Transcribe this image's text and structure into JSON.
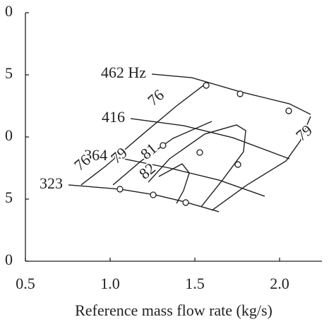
{
  "chart_data": {
    "type": "line",
    "xlabel": "Reference mass flow rate (kg/s)",
    "xlim": [
      0.5,
      2.25
    ],
    "xticks": [
      0.5,
      {
        "value": 1,
        "label": "1.0"
      },
      1.5,
      {
        "value": 2,
        "label": "2.0"
      }
    ],
    "ylim": [
      0,
      20
    ],
    "yticks": [
      0,
      {
        "value": 5,
        "label": "5"
      },
      {
        "value": 10,
        "label": "0"
      },
      {
        "value": 15,
        "label": "5"
      },
      {
        "value": 20,
        "label": "0"
      }
    ],
    "series": [
      {
        "name": "462 Hz",
        "color": "#231f20",
        "x": [
          1.246,
          1.483,
          1.767,
          2.058,
          2.183
        ],
        "values": [
          15.06,
          14.77,
          13.64,
          12.67,
          11.82
        ]
      },
      {
        "name": "416",
        "color": "#231f20",
        "x": [
          1.121,
          1.433,
          1.725,
          2.058
        ],
        "values": [
          11.48,
          10.91,
          9.94,
          8.24
        ]
      },
      {
        "name": "364",
        "color": "#231f20",
        "x": [
          1.017,
          1.35,
          1.642,
          1.912
        ],
        "values": [
          8.41,
          7.5,
          6.53,
          5.23
        ]
      },
      {
        "name": "323",
        "color": "#231f20",
        "x": [
          0.754,
          1.058,
          1.267,
          1.442,
          1.642
        ],
        "values": [
          6.14,
          5.8,
          5.34,
          4.77,
          3.98
        ]
      }
    ],
    "contours": [
      {
        "name": "76",
        "color": "#231f20",
        "x": [
          0.829,
          0.975,
          1.183,
          1.392,
          1.567
        ],
        "values": [
          6.14,
          7.67,
          10.11,
          12.5,
          14.32
        ]
      },
      {
        "name": "79",
        "color": "#231f20",
        "x": [
          1.017,
          1.183,
          1.371,
          1.6,
          null,
          1.6,
          1.808,
          2.038,
          2.121,
          2.183
        ],
        "values": [
          6.14,
          8.07,
          9.89,
          11.25,
          null,
          4.09,
          6.14,
          8.07,
          9.66,
          11.65
        ]
      },
      {
        "name": "81",
        "color": "#231f20",
        "x": [
          1.225,
          1.35,
          1.558,
          1.746,
          1.8,
          1.787,
          1.663,
          1.537
        ],
        "values": [
          6.36,
          8.24,
          10.23,
          10.97,
          10.51,
          8.81,
          6.53,
          4.38
        ]
      },
      {
        "name": "82",
        "color": "#231f20",
        "x": [
          1.287,
          1.425,
          1.467,
          1.433,
          1.392
        ],
        "values": [
          6.82,
          7.84,
          7.1,
          5.68,
          4.66
        ]
      }
    ],
    "points": {
      "x": [
        1.567,
        1.767,
        2.054,
        1.312,
        1.529,
        1.754,
        1.058,
        1.254,
        1.446
      ],
      "values": [
        14.15,
        13.47,
        12.1,
        9.32,
        8.75,
        7.78,
        5.8,
        5.34,
        4.72
      ]
    }
  }
}
